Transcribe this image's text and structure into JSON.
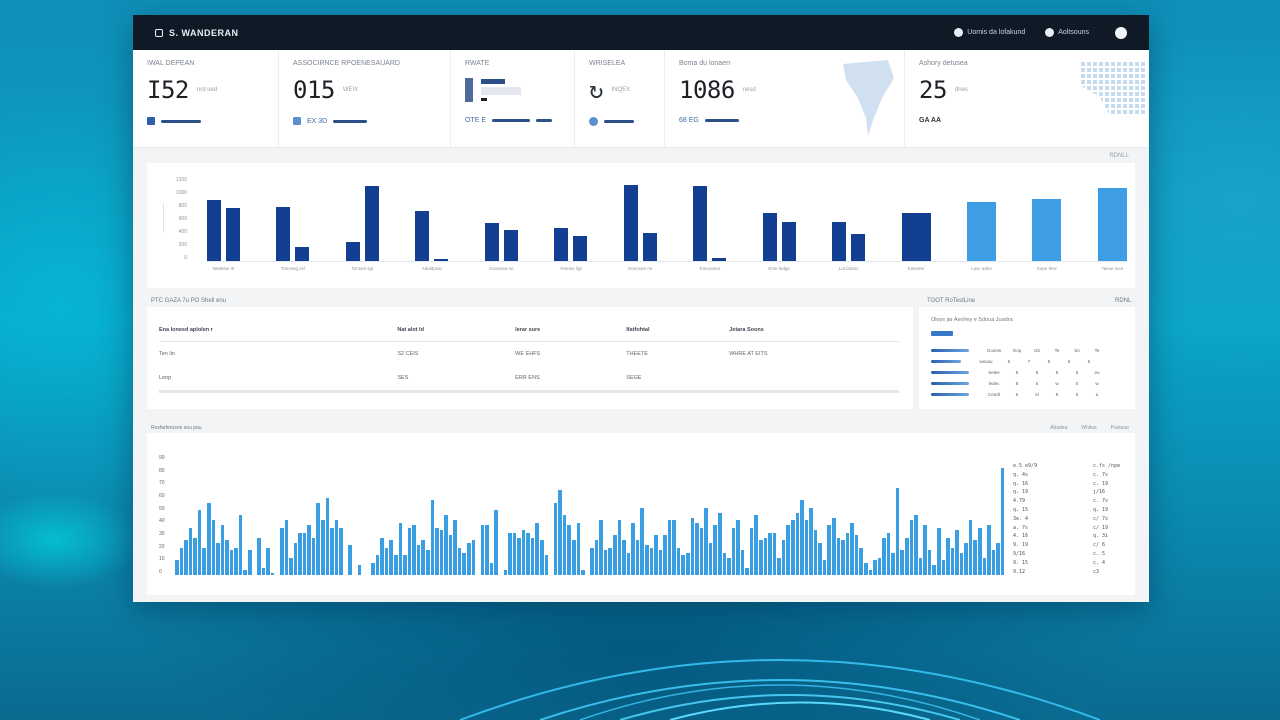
{
  "app": {
    "title": "S. WANDERAN",
    "header_actions": [
      {
        "icon": "globe-icon",
        "label": "Uomis da lofakund"
      },
      {
        "icon": "settings-icon",
        "label": "Aoltsouns"
      }
    ],
    "profile_icon": "user-avatar-icon"
  },
  "kpis": [
    {
      "label": "IWAL DEPEAN",
      "value": "I52",
      "unit": "nrd ued",
      "foot": "",
      "icon": "square-icon"
    },
    {
      "label": "ASSOCIRNCE RPOENESAUARD",
      "value": "015",
      "unit": "WEIX",
      "foot": "EX 3D",
      "icon": "image-icon"
    },
    {
      "label": "RWATE",
      "value": "",
      "unit": "",
      "foot": "OTE E",
      "icon": "bar-icon"
    },
    {
      "label": "WRISELEA",
      "value": "",
      "unit": "INQEX",
      "foot": "",
      "icon": "refresh-icon"
    },
    {
      "label": "Boma du lonaen",
      "value": "1086",
      "unit": "nesd",
      "foot": "68 EG",
      "icon": "map-icon"
    },
    {
      "label": "Ashory detusea",
      "value": "25",
      "unit": "dnes",
      "foot": "GA AA",
      "icon": "grid-map-icon"
    }
  ],
  "chart_data": [
    {
      "type": "bar",
      "title": "",
      "corner_label": "RDNLL",
      "ylim": [
        0,
        1200
      ],
      "yticks": [
        "0",
        "200",
        "400",
        "600",
        "800",
        "1000",
        "1200"
      ],
      "categories": [
        "Nedelse III",
        "Tonnseg ecl",
        "Tonnen ligt",
        "Adeldpsar",
        "Goonsea ne",
        "Yonnes ligt",
        "Donnoes ne",
        "Tonnoseor",
        "Erse ledge",
        "Lot lantos",
        "Easetee",
        "Lasc aden",
        "Sope ltrec",
        "Taeve toce"
      ],
      "series": [
        {
          "name": "Series A (dark)",
          "color": "#123f92",
          "values": [
            857,
            757,
            271,
            700,
            543,
            471,
            1071,
            1057,
            671,
            557,
            671,
            null,
            null,
            null
          ]
        },
        {
          "name": "Series B (dark)",
          "color": "#123f92",
          "values": [
            743,
            200,
            1057,
            30,
            443,
            357,
            400,
            43,
            557,
            386,
            null,
            null,
            null,
            null
          ]
        },
        {
          "name": "Series C (light)",
          "color": "#3d9ee6",
          "values": [
            null,
            null,
            null,
            null,
            null,
            null,
            null,
            null,
            null,
            null,
            null,
            829,
            871,
            1029
          ]
        }
      ]
    },
    {
      "type": "bar",
      "title": "Rosfarferusne seu pau",
      "legend": [
        "Abadea",
        "Whitus",
        "Pastuue"
      ],
      "yticks": [
        "0",
        "10",
        "20",
        "30",
        "40",
        "50",
        "60",
        "70",
        "80",
        "90"
      ],
      "values": [
        12,
        22,
        28,
        38,
        30,
        52,
        22,
        58,
        44,
        26,
        40,
        28,
        20,
        22,
        48,
        4,
        20,
        0,
        30,
        6,
        22,
        2,
        0,
        38,
        44,
        14,
        26,
        34,
        34,
        40,
        30,
        58,
        44,
        62,
        38,
        44,
        38,
        0,
        24,
        0,
        8,
        0,
        0,
        10,
        16,
        30,
        22,
        28,
        16,
        42,
        16,
        38,
        40,
        24,
        28,
        20,
        60,
        38,
        36,
        48,
        32,
        44,
        22,
        18,
        26,
        28,
        0,
        40,
        40,
        10,
        52,
        0,
        4,
        34,
        34,
        30,
        36,
        34,
        30,
        42,
        28,
        16,
        0,
        58,
        68,
        48,
        40,
        28,
        42,
        4,
        0,
        22,
        28,
        44,
        20,
        22,
        32,
        44,
        28,
        18,
        42,
        28,
        54,
        24,
        22,
        32,
        20,
        32,
        44,
        44,
        22,
        16,
        18,
        46,
        42,
        38,
        54,
        26,
        40,
        50,
        18,
        14,
        38,
        44,
        20,
        6,
        38,
        48,
        28,
        30,
        34,
        34,
        14,
        28,
        40,
        44,
        50,
        60,
        44,
        54,
        36,
        26,
        12,
        40,
        46,
        30,
        28,
        34,
        42,
        32,
        22,
        10,
        4,
        12,
        14,
        30,
        34,
        18,
        70,
        20,
        30,
        44,
        48,
        14,
        40,
        20,
        8,
        38,
        12,
        30,
        22,
        36,
        18,
        26,
        44,
        28,
        38,
        14,
        40,
        20,
        26,
        86
      ],
      "side_values_left": [
        "e.5 e9/9",
        "q. 4s",
        "q. 16",
        "q. 19",
        "4.79",
        "q. 15",
        "3e. 4",
        "a. 7s",
        "4. 16",
        "9. 19",
        "9/16",
        "9. 15",
        "9.12"
      ],
      "side_values_right": [
        "c.fs /npe",
        "c. 7s",
        "c. 19",
        "j/16",
        "c. 7s",
        "q. 19",
        "c/ 7s",
        "c/ 19",
        "q. 3i",
        "c/ 6",
        "c. 5",
        "c. 4",
        "c3"
      ]
    }
  ],
  "table": {
    "title": "PTC GAZA 7u PO Shell enu",
    "columns": [
      "Ena lonesd aplolen r",
      "Nat alot ld",
      "Ierar sure",
      "Ifatfohtal",
      "Jetara Soons"
    ],
    "rows": [
      [
        "Ten lin",
        "S2 CEIS",
        "WE EHFS",
        "THEETE",
        "WHRE AT EITS"
      ],
      [
        "Lenp",
        "SES",
        "ERR ENS",
        "SEGE",
        ""
      ]
    ]
  },
  "side_panel": {
    "title": "TOOT RoTestLine",
    "corner": "RDNL",
    "subtitle": "Oloys jar Aevlrey e Sdoua Juadra",
    "tag": "Tlinoes",
    "rows": [
      {
        "label": "Goonw",
        "c": [
          "Gop",
          "Gb",
          "Te",
          "Sn",
          "Te"
        ]
      },
      {
        "label": "wexau",
        "c": [
          "6",
          "7",
          "8",
          "6",
          "6"
        ]
      },
      {
        "label": "Selee",
        "c": [
          "8",
          "8",
          "8",
          "5",
          "eu"
        ]
      },
      {
        "label": "ledec",
        "c": [
          "8",
          "5",
          "w",
          "0",
          "w"
        ]
      },
      {
        "label": "Cendt",
        "c": [
          "6",
          "el",
          "8",
          "6",
          "a"
        ]
      }
    ]
  }
}
